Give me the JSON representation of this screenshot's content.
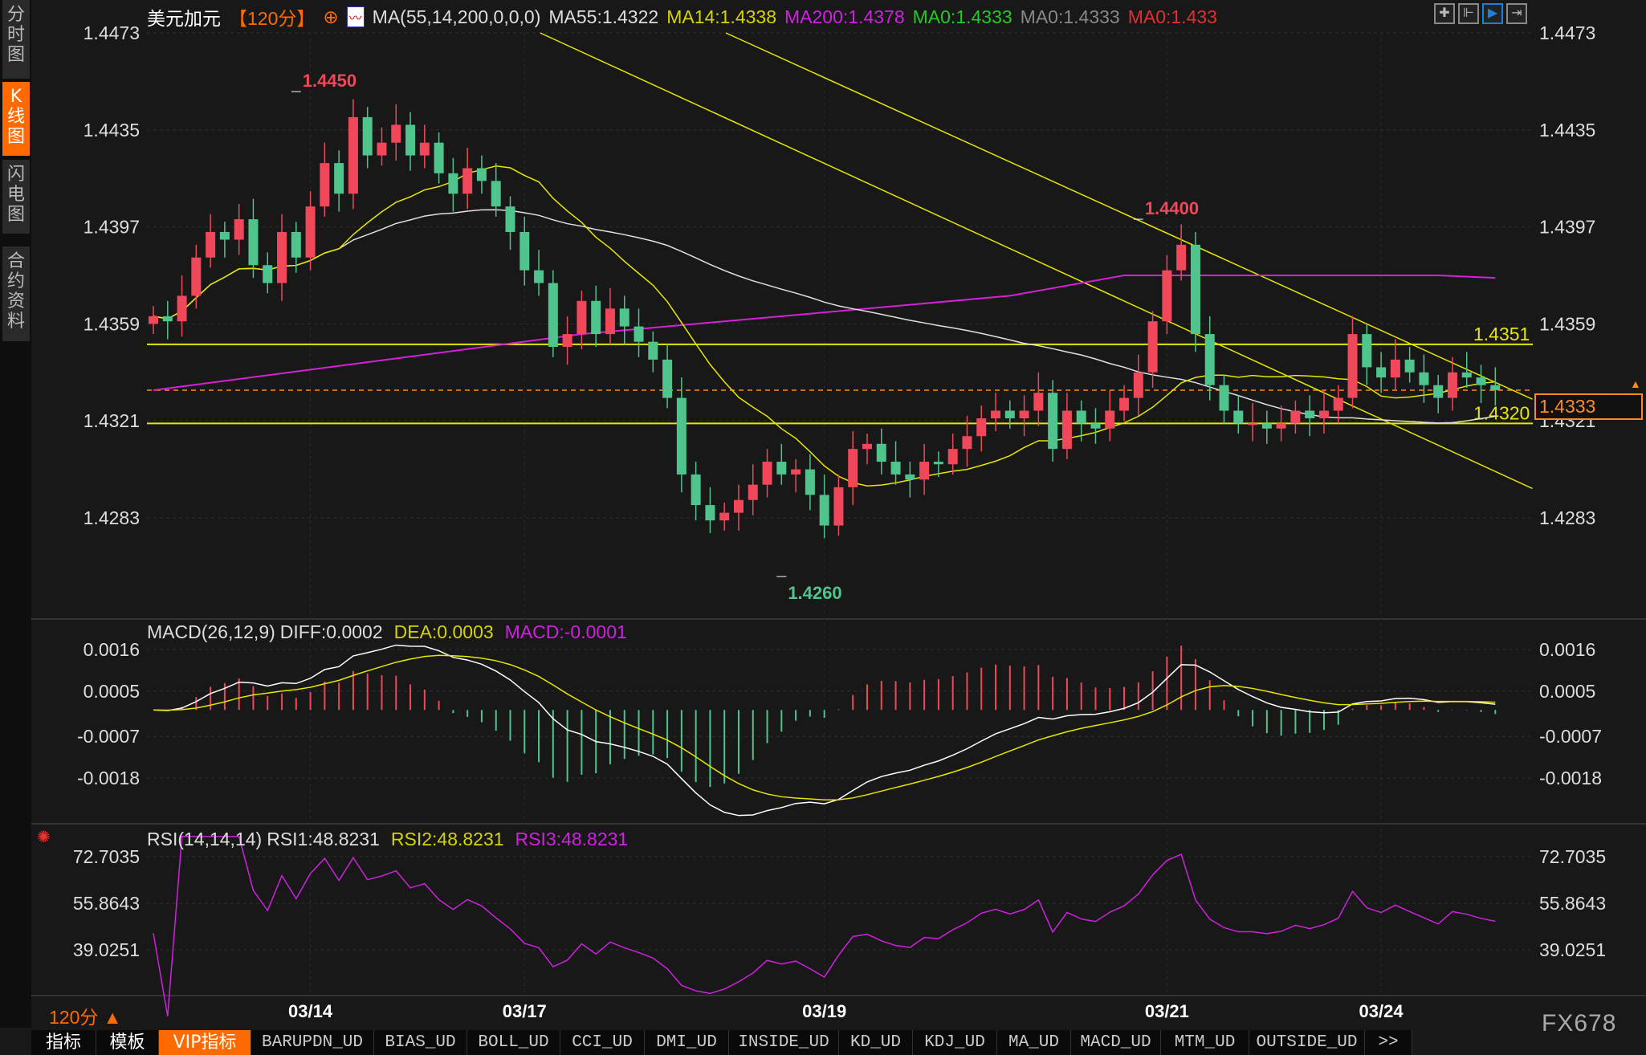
{
  "sidebar": {
    "tabs": [
      {
        "label": "分时图"
      },
      {
        "label": "K线图",
        "active": true
      },
      {
        "label": "闪电图"
      },
      {
        "label": "合约资料"
      }
    ]
  },
  "header": {
    "symbol": "美元加元",
    "period": "【120分】",
    "indicator": "MA(55,14,200,0,0,0)",
    "ma55": "MA55:1.4322",
    "ma14": "MA14:1.4338",
    "ma200": "MA200:1.4378",
    "ma0a": "MA0:1.4333",
    "ma0b": "MA0:1.4333",
    "ma0c": "MA0:1.433",
    "icons": [
      "crosshair-icon",
      "range-icon",
      "play-right-icon",
      "forward-icon"
    ]
  },
  "macd_legend": {
    "title": "MACD(26,12,9)",
    "diff": "DIFF:0.0002",
    "dea": "DEA:0.0003",
    "macd": "MACD:-0.0001"
  },
  "rsi_legend": {
    "title": "RSI(14,14,14)",
    "rsi1": "RSI1:48.8231",
    "rsi2": "RSI2:48.8231",
    "rsi3": "RSI3:48.8231"
  },
  "current_price": "1.4333",
  "colors": {
    "up": "#f0485a",
    "down": "#4fc48c",
    "ma14": "#e6e600",
    "ma55": "#e0e0e0",
    "ma200": "#d820d8",
    "accent": "#ff6a00"
  },
  "chart_data": {
    "type": "candlestick",
    "price_ticks": [
      "1.4473",
      "1.4435",
      "1.4397",
      "1.4359",
      "1.4321",
      "1.4283"
    ],
    "macd_ticks": [
      "0.0016",
      "0.0005",
      "-0.0007",
      "-0.0018"
    ],
    "rsi_ticks": [
      "72.7035",
      "55.8643",
      "39.0251"
    ],
    "dates": [
      {
        "label": "03/14",
        "index": 11
      },
      {
        "label": "03/17",
        "index": 26
      },
      {
        "label": "03/19",
        "index": 47
      },
      {
        "label": "03/21",
        "index": 71
      },
      {
        "label": "03/24",
        "index": 86
      }
    ],
    "closes": [
      1.4362,
      1.436,
      1.437,
      1.4385,
      1.4395,
      1.4392,
      1.44,
      1.4382,
      1.4375,
      1.4395,
      1.4385,
      1.4405,
      1.4422,
      1.441,
      1.444,
      1.4425,
      1.443,
      1.4437,
      1.4425,
      1.443,
      1.4418,
      1.441,
      1.442,
      1.4415,
      1.4405,
      1.4395,
      1.438,
      1.4375,
      1.435,
      1.4355,
      1.4368,
      1.4355,
      1.4365,
      1.4358,
      1.4352,
      1.4345,
      1.433,
      1.43,
      1.4288,
      1.4282,
      1.4285,
      1.429,
      1.4296,
      1.4305,
      1.43,
      1.4302,
      1.4292,
      1.428,
      1.4295,
      1.431,
      1.4312,
      1.4305,
      1.43,
      1.4298,
      1.4305,
      1.4304,
      1.431,
      1.4315,
      1.4322,
      1.4325,
      1.4322,
      1.4325,
      1.4332,
      1.431,
      1.4325,
      1.432,
      1.4318,
      1.4325,
      1.433,
      1.434,
      1.436,
      1.438,
      1.439,
      1.4355,
      1.4335,
      1.4325,
      1.432,
      1.432,
      1.4318,
      1.432,
      1.4325,
      1.4322,
      1.4325,
      1.433,
      1.4355,
      1.4342,
      1.4338,
      1.4345,
      1.434,
      1.4335,
      1.433,
      1.434,
      1.4338,
      1.4335,
      1.4333
    ],
    "ma200": [
      [
        0,
        1.4333
      ],
      [
        30,
        1.4355
      ],
      [
        60,
        1.437
      ],
      [
        68,
        1.4378
      ],
      [
        90,
        1.4378
      ],
      [
        94,
        1.4377
      ]
    ],
    "annotations": [
      {
        "text": "1.4450",
        "index": 10,
        "price": 1.445,
        "color": "#f0485a"
      },
      {
        "text": "1.4260",
        "index": 44,
        "price": 1.426,
        "color": "#4fc48c"
      },
      {
        "text": "1.4400",
        "index": 69,
        "price": 1.44,
        "color": "#f0485a"
      }
    ],
    "hlines": [
      {
        "price": 1.4351,
        "label": "1.4351"
      },
      {
        "price": 1.432,
        "label": "1.4320"
      }
    ],
    "trendlines": [
      [
        [
          27.1,
          1.4473
        ],
        [
          96.6,
          1.42945
        ]
      ],
      [
        [
          40.1,
          1.4473
        ],
        [
          96.6,
          1.43295
        ]
      ]
    ],
    "current_line": 1.4333
  },
  "footer": {
    "period": "120分 ▲",
    "watermark": "FX678",
    "tabs": [
      "指标",
      "模板",
      "VIP指标",
      "BARUPDN_UD",
      "BIAS_UD",
      "BOLL_UD",
      "CCI_UD",
      "DMI_UD",
      "INSIDE_UD",
      "KD_UD",
      "KDJ_UD",
      "MA_UD",
      "MACD_UD",
      "MTM_UD",
      "OUTSIDE_UD",
      ">>"
    ]
  }
}
